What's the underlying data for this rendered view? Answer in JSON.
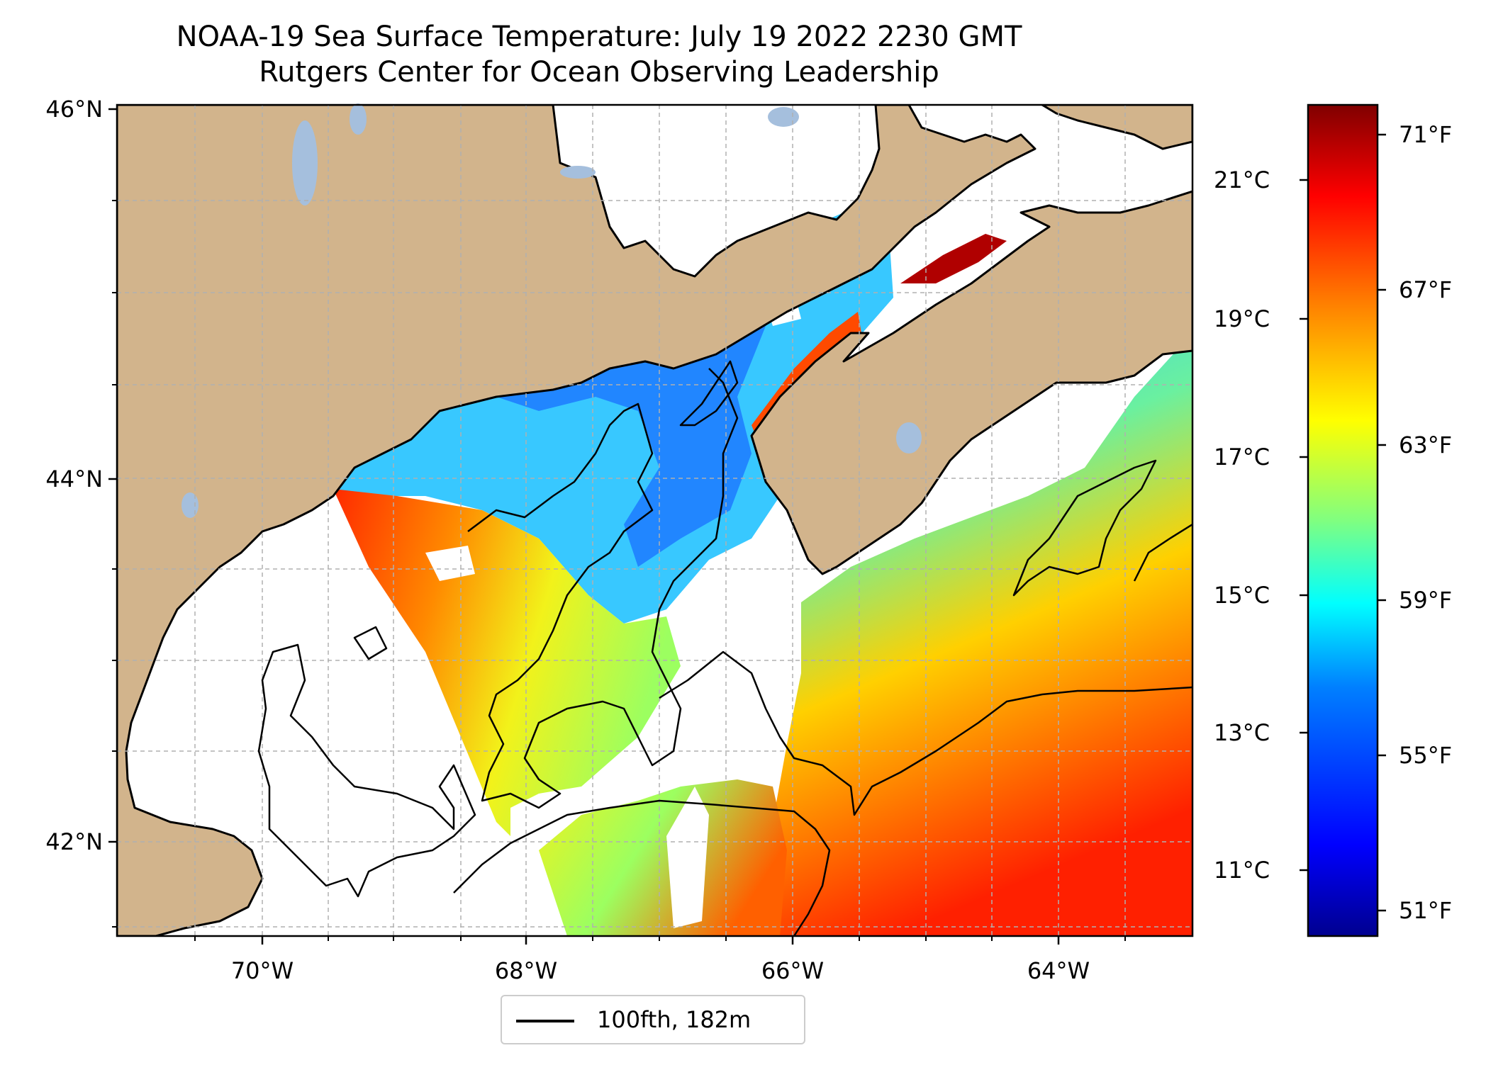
{
  "title": {
    "line1": "NOAA-19 Sea Surface Temperature: July 19 2022 2230 GMT",
    "line2": "Rutgers Center for Ocean Observing Leadership"
  },
  "colors": {
    "land": "#d2b48c",
    "lake": "#a5bfdd",
    "coast": "#000000",
    "grid": "#b0b0b0",
    "cmap": [
      "#00008f",
      "#0000ff",
      "#0080ff",
      "#00ffff",
      "#80ff80",
      "#ffff00",
      "#ff8000",
      "#ff0000",
      "#800000"
    ]
  },
  "axes": {
    "lat_labels": [
      "46°N",
      "44°N",
      "42°N"
    ],
    "lon_labels": [
      "70°W",
      "68°W",
      "66°W",
      "64°W"
    ]
  },
  "colorbar": {
    "celsius_labels": [
      "21°C",
      "19°C",
      "17°C",
      "15°C",
      "13°C",
      "11°C"
    ],
    "fahrenheit_labels": [
      "71°F",
      "67°F",
      "63°F",
      "59°F",
      "55°F",
      "51°F"
    ]
  },
  "legend": {
    "label": "100fth, 182m"
  }
}
